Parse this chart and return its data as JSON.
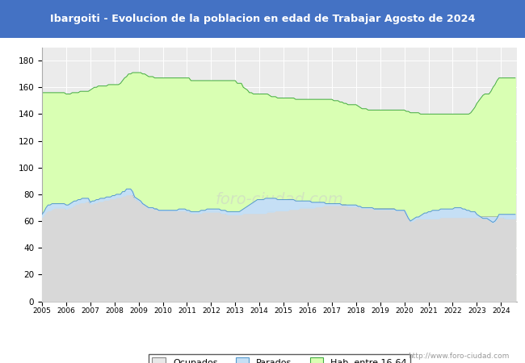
{
  "title": "Ibargoiti - Evolucion de la poblacion en edad de Trabajar Agosto de 2024",
  "title_bg_color": "#4472C4",
  "title_text_color": "white",
  "ylim": [
    0,
    190
  ],
  "yticks": [
    0,
    20,
    40,
    60,
    80,
    100,
    120,
    140,
    160,
    180
  ],
  "url_text": "http://www.foro-ciudad.com",
  "legend_labels": [
    "Ocupados",
    "Parados",
    "Hab. entre 16-64"
  ],
  "plot_bg_color": "#ebebeb",
  "grid_color": "#ffffff",
  "hab_color": "#d9ffb3",
  "hab_edge_color": "#44aa44",
  "ocupados_fill_color": "#d8d8d8",
  "ocupados_line_color": "#555555",
  "parados_fill_color": "#c5dff5",
  "parados_line_color": "#5599cc",
  "legend_ocu_color": "#e8e8e8",
  "legend_par_color": "#c5dff5",
  "legend_hab_color": "#d9ffb3",
  "years": [
    2005,
    2006,
    2007,
    2008,
    2009,
    2010,
    2011,
    2012,
    2013,
    2014,
    2015,
    2016,
    2017,
    2018,
    2019,
    2020,
    2021,
    2022,
    2023,
    2024
  ],
  "hab_monthly": [
    156,
    156,
    156,
    156,
    156,
    156,
    156,
    156,
    156,
    156,
    156,
    156,
    155,
    155,
    155,
    156,
    156,
    156,
    156,
    157,
    157,
    157,
    157,
    157,
    158,
    159,
    160,
    160,
    161,
    161,
    161,
    161,
    161,
    162,
    162,
    162,
    162,
    162,
    162,
    163,
    165,
    167,
    168,
    170,
    170,
    171,
    171,
    171,
    171,
    171,
    170,
    170,
    169,
    168,
    168,
    168,
    167,
    167,
    167,
    167,
    167,
    167,
    167,
    167,
    167,
    167,
    167,
    167,
    167,
    167,
    167,
    167,
    167,
    167,
    165,
    165,
    165,
    165,
    165,
    165,
    165,
    165,
    165,
    165,
    165,
    165,
    165,
    165,
    165,
    165,
    165,
    165,
    165,
    165,
    165,
    165,
    165,
    163,
    163,
    163,
    160,
    159,
    158,
    156,
    156,
    155,
    155,
    155,
    155,
    155,
    155,
    155,
    155,
    154,
    153,
    153,
    153,
    152,
    152,
    152,
    152,
    152,
    152,
    152,
    152,
    152,
    151,
    151,
    151,
    151,
    151,
    151,
    151,
    151,
    151,
    151,
    151,
    151,
    151,
    151,
    151,
    151,
    151,
    151,
    151,
    150,
    150,
    150,
    149,
    149,
    148,
    148,
    147,
    147,
    147,
    147,
    147,
    146,
    145,
    144,
    144,
    144,
    143,
    143,
    143,
    143,
    143,
    143,
    143,
    143,
    143,
    143,
    143,
    143,
    143,
    143,
    143,
    143,
    143,
    143,
    143,
    142,
    142,
    141,
    141,
    141,
    141,
    141,
    140,
    140,
    140,
    140,
    140,
    140,
    140,
    140,
    140,
    140,
    140,
    140,
    140,
    140,
    140,
    140,
    140,
    140,
    140,
    140,
    140,
    140,
    140,
    140,
    140,
    141,
    143,
    145,
    148,
    150,
    152,
    154,
    155,
    155,
    155,
    157,
    160,
    162,
    165,
    167,
    167,
    167,
    167,
    167,
    167,
    167,
    167,
    167
  ],
  "ocu_monthly": [
    63,
    65,
    67,
    68,
    68,
    69,
    70,
    70,
    70,
    70,
    70,
    70,
    69,
    70,
    70,
    71,
    72,
    73,
    73,
    74,
    74,
    74,
    75,
    75,
    73,
    73,
    74,
    74,
    75,
    75,
    75,
    76,
    76,
    76,
    77,
    77,
    77,
    78,
    78,
    78,
    79,
    79,
    80,
    80,
    80,
    80,
    77,
    76,
    75,
    74,
    73,
    72,
    71,
    70,
    70,
    70,
    69,
    69,
    68,
    68,
    68,
    68,
    68,
    68,
    68,
    68,
    68,
    68,
    68,
    68,
    68,
    68,
    67,
    67,
    66,
    66,
    66,
    66,
    66,
    66,
    67,
    67,
    67,
    67,
    67,
    67,
    67,
    67,
    67,
    66,
    66,
    66,
    65,
    65,
    65,
    65,
    65,
    65,
    65,
    65,
    66,
    66,
    66,
    66,
    66,
    66,
    66,
    66,
    66,
    66,
    66,
    66,
    67,
    67,
    67,
    67,
    68,
    68,
    68,
    68,
    68,
    68,
    68,
    69,
    69,
    69,
    69,
    69,
    70,
    70,
    70,
    70,
    70,
    70,
    70,
    70,
    71,
    71,
    71,
    71,
    72,
    72,
    72,
    72,
    72,
    72,
    72,
    72,
    72,
    72,
    72,
    72,
    71,
    71,
    71,
    71,
    71,
    71,
    70,
    70,
    70,
    70,
    70,
    70,
    70,
    69,
    69,
    69,
    69,
    69,
    69,
    69,
    69,
    69,
    69,
    69,
    68,
    68,
    68,
    68,
    68,
    65,
    62,
    60,
    60,
    61,
    62,
    62,
    62,
    62,
    62,
    62,
    62,
    62,
    62,
    62,
    62,
    62,
    63,
    63,
    63,
    63,
    63,
    63,
    63,
    63,
    63,
    63,
    63,
    63,
    63,
    63,
    63,
    63,
    63,
    63,
    63,
    63,
    63,
    63,
    63,
    63,
    63,
    63,
    63,
    63,
    63,
    63,
    63,
    63,
    62,
    62,
    62,
    62,
    62,
    62
  ],
  "par_monthly": [
    65,
    67,
    70,
    72,
    72,
    73,
    73,
    73,
    73,
    73,
    73,
    73,
    72,
    72,
    73,
    74,
    75,
    75,
    76,
    76,
    77,
    77,
    77,
    77,
    74,
    75,
    75,
    76,
    76,
    77,
    77,
    77,
    78,
    78,
    78,
    79,
    79,
    80,
    80,
    80,
    82,
    82,
    84,
    84,
    84,
    82,
    78,
    77,
    76,
    75,
    73,
    72,
    71,
    70,
    70,
    70,
    69,
    69,
    68,
    68,
    68,
    68,
    68,
    68,
    68,
    68,
    68,
    68,
    69,
    69,
    69,
    69,
    68,
    68,
    67,
    67,
    67,
    67,
    67,
    68,
    68,
    68,
    69,
    69,
    69,
    69,
    69,
    69,
    69,
    68,
    68,
    68,
    67,
    67,
    67,
    67,
    67,
    67,
    67,
    68,
    69,
    70,
    71,
    72,
    73,
    74,
    75,
    76,
    76,
    76,
    76,
    77,
    77,
    77,
    77,
    77,
    77,
    76,
    76,
    76,
    76,
    76,
    76,
    76,
    76,
    76,
    75,
    75,
    75,
    75,
    75,
    75,
    75,
    75,
    74,
    74,
    74,
    74,
    74,
    74,
    74,
    73,
    73,
    73,
    73,
    73,
    73,
    73,
    73,
    72,
    72,
    72,
    72,
    72,
    72,
    72,
    72,
    71,
    71,
    70,
    70,
    70,
    70,
    70,
    70,
    69,
    69,
    69,
    69,
    69,
    69,
    69,
    69,
    69,
    69,
    69,
    68,
    68,
    68,
    68,
    68,
    65,
    62,
    60,
    61,
    62,
    63,
    63,
    64,
    65,
    66,
    66,
    67,
    67,
    68,
    68,
    68,
    68,
    69,
    69,
    69,
    69,
    69,
    69,
    69,
    70,
    70,
    70,
    70,
    69,
    69,
    68,
    68,
    67,
    67,
    67,
    65,
    64,
    63,
    62,
    62,
    62,
    61,
    60,
    59,
    60,
    62,
    65,
    65,
    65,
    65,
    65,
    65,
    65,
    65,
    65
  ]
}
